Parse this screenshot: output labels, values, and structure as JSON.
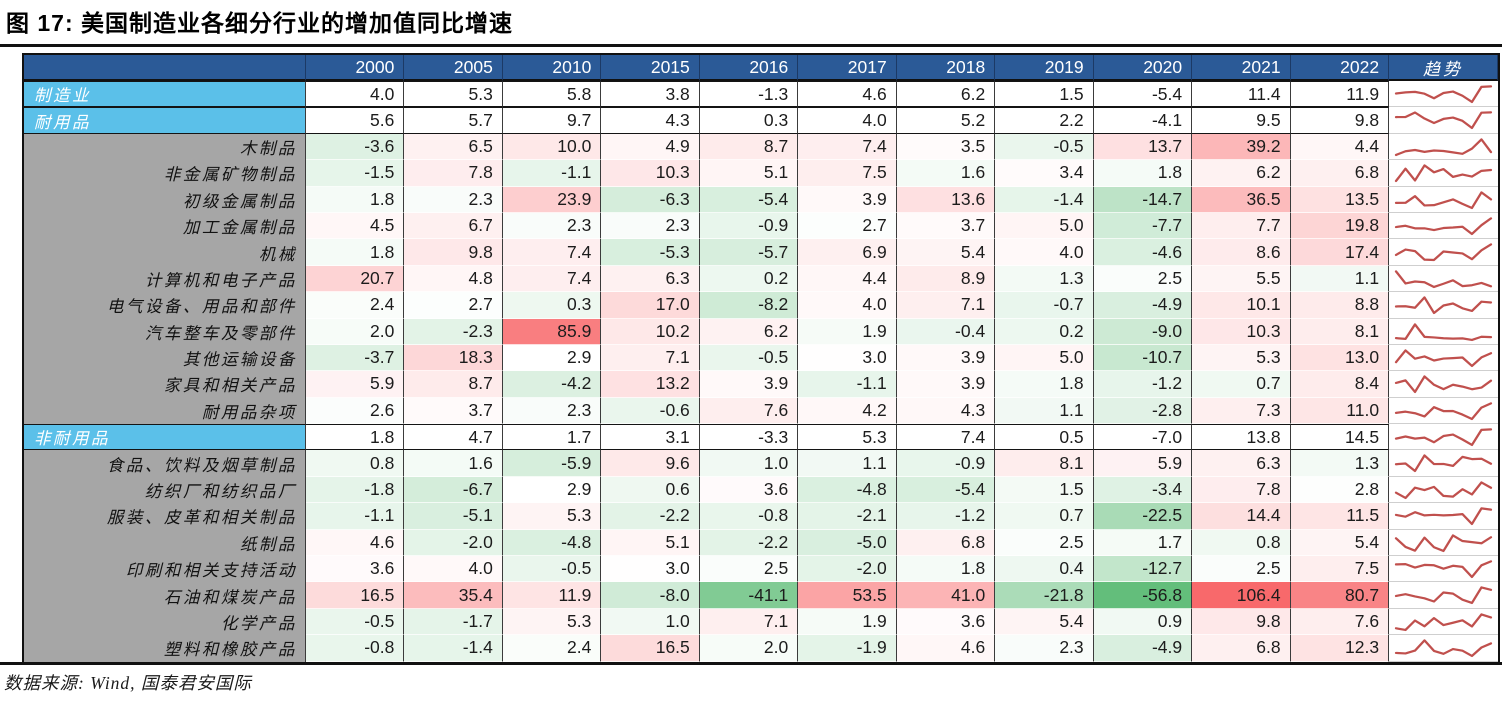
{
  "title": "图 17:  美国制造业各细分行业的增加值同比增速",
  "source": "数据来源:  Wind, 国泰君安国际",
  "colors": {
    "header_bg": "#2B5A97",
    "group_bg": "#5BC0E9",
    "label_bg": "#A6A6A6",
    "heat_max_red": "#F8696B",
    "heat_min_green": "#63BE7B",
    "sparkline_red": "#C0504D"
  },
  "chart_data": {
    "type": "table",
    "title": "美国制造业各细分行业的增加值同比增速",
    "trend_label": "趋势",
    "columns": [
      "2000",
      "2005",
      "2010",
      "2015",
      "2016",
      "2017",
      "2018",
      "2019",
      "2020",
      "2021",
      "2022"
    ],
    "rows": [
      {
        "label": "制造业",
        "type": "group",
        "values": [
          4.0,
          5.3,
          5.8,
          3.8,
          -1.3,
          4.6,
          6.2,
          1.5,
          -5.4,
          11.4,
          11.9
        ]
      },
      {
        "label": "耐用品",
        "type": "group",
        "values": [
          5.6,
          5.7,
          9.7,
          4.3,
          0.3,
          4.0,
          5.2,
          2.2,
          -4.1,
          9.5,
          9.8
        ]
      },
      {
        "label": "木制品",
        "type": "sub",
        "values": [
          -3.6,
          6.5,
          10.0,
          4.9,
          8.7,
          7.4,
          3.5,
          -0.5,
          13.7,
          39.2,
          4.4
        ]
      },
      {
        "label": "非金属矿物制品",
        "type": "sub",
        "values": [
          -1.5,
          7.8,
          -1.1,
          10.3,
          5.1,
          7.5,
          1.6,
          3.4,
          1.8,
          6.2,
          6.8
        ]
      },
      {
        "label": "初级金属制品",
        "type": "sub",
        "values": [
          1.8,
          2.3,
          23.9,
          -6.3,
          -5.4,
          3.9,
          13.6,
          -1.4,
          -14.7,
          36.5,
          13.5
        ]
      },
      {
        "label": "加工金属制品",
        "type": "sub",
        "values": [
          4.5,
          6.7,
          2.3,
          2.3,
          -0.9,
          2.7,
          3.7,
          5.0,
          -7.7,
          7.7,
          19.8
        ]
      },
      {
        "label": "机械",
        "type": "sub",
        "values": [
          1.8,
          9.8,
          7.4,
          -5.3,
          -5.7,
          6.9,
          5.4,
          4.0,
          -4.6,
          8.6,
          17.4
        ]
      },
      {
        "label": "计算机和电子产品",
        "type": "sub",
        "values": [
          20.7,
          4.8,
          7.4,
          6.3,
          0.2,
          4.4,
          8.9,
          1.3,
          2.5,
          5.5,
          1.1
        ]
      },
      {
        "label": "电气设备、用品和部件",
        "type": "sub",
        "values": [
          2.4,
          2.7,
          0.3,
          17.0,
          -8.2,
          4.0,
          7.1,
          -0.7,
          -4.9,
          10.1,
          8.8
        ]
      },
      {
        "label": "汽车整车及零部件",
        "type": "sub",
        "values": [
          2.0,
          -2.3,
          85.9,
          10.2,
          6.2,
          1.9,
          -0.4,
          0.2,
          -9.0,
          10.3,
          8.1
        ]
      },
      {
        "label": "其他运输设备",
        "type": "sub",
        "values": [
          -3.7,
          18.3,
          2.9,
          7.1,
          -0.5,
          3.0,
          3.9,
          5.0,
          -10.7,
          5.3,
          13.0
        ]
      },
      {
        "label": "家具和相关产品",
        "type": "sub",
        "values": [
          5.9,
          8.7,
          -4.2,
          13.2,
          3.9,
          -1.1,
          3.9,
          1.8,
          -1.2,
          0.7,
          8.4
        ]
      },
      {
        "label": "耐用品杂项",
        "type": "sub",
        "values": [
          2.6,
          3.7,
          2.3,
          -0.6,
          7.6,
          4.2,
          4.3,
          1.1,
          -2.8,
          7.3,
          11.0
        ]
      },
      {
        "label": "非耐用品",
        "type": "group",
        "values": [
          1.8,
          4.7,
          1.7,
          3.1,
          -3.3,
          5.3,
          7.4,
          0.5,
          -7.0,
          13.8,
          14.5
        ]
      },
      {
        "label": "食品、饮料及烟草制品",
        "type": "sub",
        "values": [
          0.8,
          1.6,
          -5.9,
          9.6,
          1.0,
          1.1,
          -0.9,
          8.1,
          5.9,
          6.3,
          1.3
        ]
      },
      {
        "label": "纺织厂和纺织品厂",
        "type": "sub",
        "values": [
          -1.8,
          -6.7,
          2.9,
          0.6,
          3.6,
          -4.8,
          -5.4,
          1.5,
          -3.4,
          7.8,
          2.8
        ]
      },
      {
        "label": "服装、皮革和相关制品",
        "type": "sub",
        "values": [
          -1.1,
          -5.1,
          5.3,
          -2.2,
          -0.8,
          -2.1,
          -1.2,
          0.7,
          -22.5,
          14.4,
          11.5
        ]
      },
      {
        "label": "纸制品",
        "type": "sub",
        "values": [
          4.6,
          -2.0,
          -4.8,
          5.1,
          -2.2,
          -5.0,
          6.8,
          2.5,
          1.7,
          0.8,
          5.4
        ]
      },
      {
        "label": "印刷和相关支持活动",
        "type": "sub",
        "values": [
          3.6,
          4.0,
          -0.5,
          3.0,
          2.5,
          -2.0,
          1.8,
          0.4,
          -12.7,
          2.5,
          7.5
        ]
      },
      {
        "label": "石油和煤炭产品",
        "type": "sub",
        "values": [
          16.5,
          35.4,
          11.9,
          -8.0,
          -41.1,
          53.5,
          41.0,
          -21.8,
          -56.8,
          106.4,
          80.7
        ]
      },
      {
        "label": "化学产品",
        "type": "sub",
        "values": [
          -0.5,
          -1.7,
          5.3,
          1.0,
          7.1,
          1.9,
          3.6,
          5.4,
          0.9,
          9.8,
          7.6
        ]
      },
      {
        "label": "塑料和橡胶产品",
        "type": "sub",
        "values": [
          -0.8,
          -1.4,
          2.4,
          16.5,
          2.0,
          -1.9,
          4.6,
          2.3,
          -4.9,
          6.8,
          12.3
        ]
      }
    ]
  }
}
